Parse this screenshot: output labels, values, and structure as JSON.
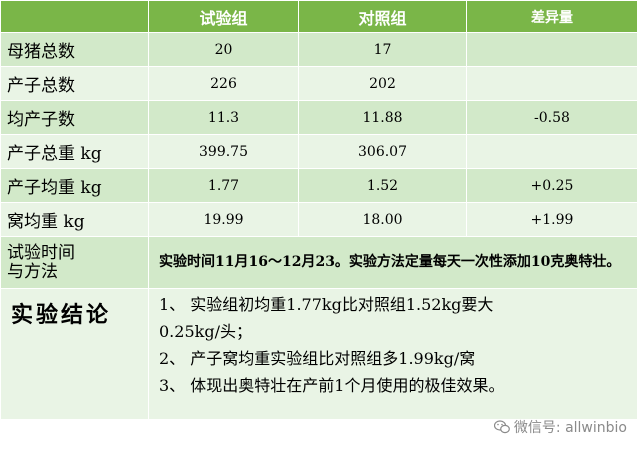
{
  "header": {
    "col_test": "试验组",
    "col_control": "对照组",
    "col_diff": "差异量"
  },
  "rows": [
    {
      "label": "母猪总数",
      "test": "20",
      "control": "17",
      "diff": ""
    },
    {
      "label": "产子总数",
      "test": "226",
      "control": "202",
      "diff": ""
    },
    {
      "label": "均产子数",
      "test": "11.3",
      "control": "11.88",
      "diff": "-0.58"
    },
    {
      "label": "产子总重 kg",
      "test": "399.75",
      "control": "306.07",
      "diff": ""
    },
    {
      "label": "产子均重 kg",
      "test": "1.77",
      "control": "1.52",
      "diff": "+0.25"
    },
    {
      "label": "窝均重 kg",
      "test": "19.99",
      "control": "18.00",
      "diff": "+1.99"
    }
  ],
  "method": {
    "label_line1": "试验时间",
    "label_line2": "与方法",
    "text": "实验时间11月16～12月23。实验方法定量每天一次性添加10克奥特壮。"
  },
  "conclusion": {
    "label": "实验结论",
    "lines": [
      "1、 实验组初均重1.77kg比对照组1.52kg要大",
      "0.25kg/头；",
      "2、 产子窝均重实验组比对照组多1.99kg/窝",
      "3、 体现出奥特壮在产前1个月使用的极佳效果。"
    ]
  },
  "watermark": {
    "text": "微信号: allwinbio",
    "icon": "wechat-icon"
  }
}
